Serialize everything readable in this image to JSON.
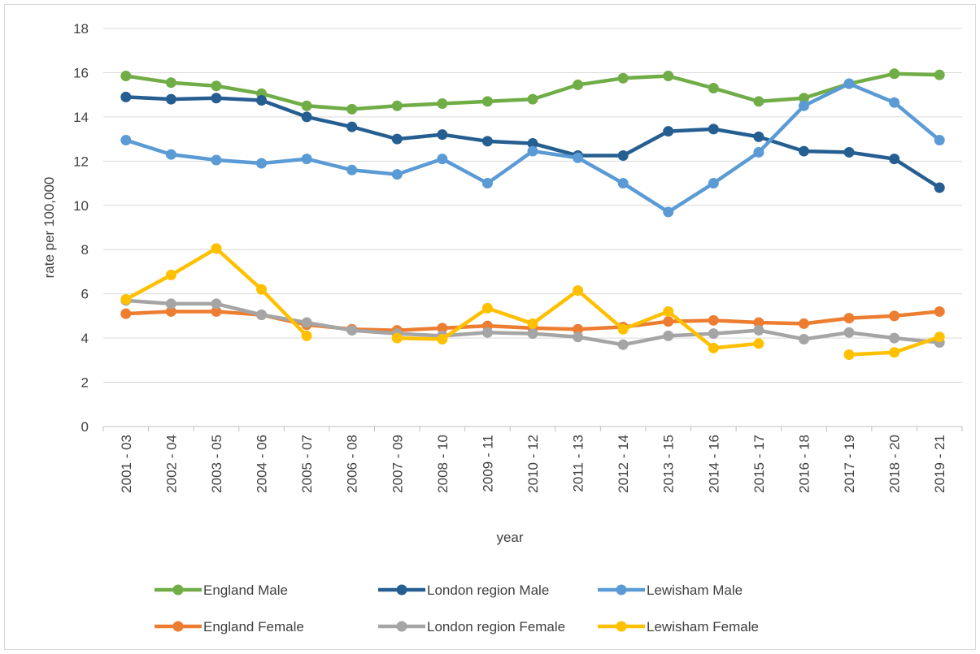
{
  "chart_data": {
    "type": "line",
    "x_label": "year",
    "y_label": "rate per 100,000",
    "categories": [
      "2001 - 03",
      "2002 - 04",
      "2003 - 05",
      "2004 - 06",
      "2005 - 07",
      "2006 - 08",
      "2007 - 09",
      "2008 - 10",
      "2009 - 11",
      "2010 - 12",
      "2011 - 13",
      "2012 - 14",
      "2013 - 15",
      "2014 - 16",
      "2015 - 17",
      "2016 - 18",
      "2017 - 19",
      "2018 - 20",
      "2019 - 21"
    ],
    "ylim": [
      0,
      18
    ],
    "yticks": [
      0,
      2,
      4,
      6,
      8,
      10,
      12,
      14,
      16,
      18
    ],
    "grid": true,
    "legend": "bottom",
    "series": [
      {
        "name": "England Male",
        "color": "#70ad47",
        "values": [
          15.85,
          15.55,
          15.4,
          15.05,
          14.5,
          14.35,
          14.5,
          14.6,
          14.7,
          14.8,
          15.45,
          15.75,
          15.85,
          15.3,
          14.7,
          14.85,
          15.5,
          15.95,
          15.9
        ]
      },
      {
        "name": "London region Male",
        "color": "#255e91",
        "values": [
          14.9,
          14.8,
          14.85,
          14.75,
          14.0,
          13.55,
          13.0,
          13.2,
          12.9,
          12.8,
          12.25,
          12.25,
          13.35,
          13.45,
          13.1,
          12.45,
          12.4,
          12.1,
          10.8
        ]
      },
      {
        "name": "Lewisham Male",
        "color": "#5b9bd5",
        "values": [
          12.95,
          12.3,
          12.05,
          11.9,
          12.1,
          11.6,
          11.4,
          12.1,
          11.0,
          12.45,
          12.15,
          11.0,
          9.7,
          11.0,
          12.4,
          14.5,
          15.5,
          14.65,
          12.95
        ]
      },
      {
        "name": "England Female",
        "color": "#ed7d31",
        "values": [
          5.1,
          5.2,
          5.2,
          5.05,
          4.6,
          4.4,
          4.35,
          4.45,
          4.55,
          4.45,
          4.4,
          4.5,
          4.75,
          4.8,
          4.7,
          4.65,
          4.9,
          5.0,
          5.2
        ]
      },
      {
        "name": "London region Female",
        "color": "#a5a5a5",
        "values": [
          5.7,
          5.55,
          5.55,
          5.05,
          4.7,
          4.35,
          4.2,
          4.1,
          4.25,
          4.2,
          4.05,
          3.7,
          4.1,
          4.2,
          4.35,
          3.95,
          4.25,
          4.0,
          3.8
        ]
      },
      {
        "name": "Lewisham Female",
        "color": "#ffc000",
        "values": [
          5.75,
          6.85,
          8.05,
          6.2,
          4.1,
          null,
          4.0,
          3.95,
          5.35,
          4.65,
          6.15,
          4.4,
          5.2,
          3.55,
          3.75,
          null,
          3.25,
          3.35,
          4.05
        ]
      }
    ]
  }
}
